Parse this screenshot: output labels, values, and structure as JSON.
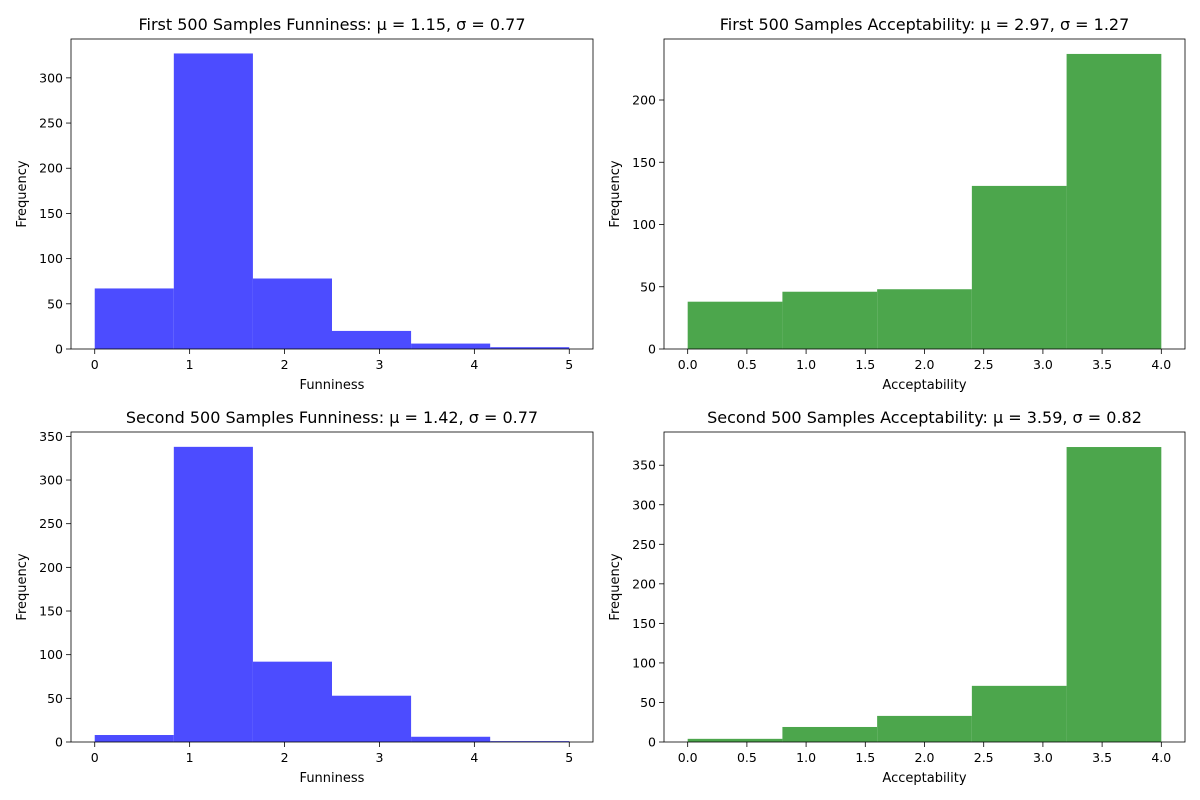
{
  "chart_data": [
    {
      "type": "bar",
      "title": "First 500 Samples Funniness: μ = 1.15, σ = 0.77",
      "xlabel": "Funniness",
      "ylabel": "Frequency",
      "color": "#4c4cff",
      "bin_edges": [
        0,
        0.8333,
        1.6667,
        2.5,
        3.3333,
        4.1667,
        5
      ],
      "values": [
        67,
        327,
        78,
        20,
        6,
        2
      ],
      "xlim": [
        -0.25,
        5.25
      ],
      "ylim": [
        0,
        343
      ],
      "xticks": [
        0,
        1,
        2,
        3,
        4,
        5
      ],
      "xtick_labels": [
        "0",
        "1",
        "2",
        "3",
        "4",
        "5"
      ],
      "yticks": [
        0,
        50,
        100,
        150,
        200,
        250,
        300
      ],
      "ytick_labels": [
        "0",
        "50",
        "100",
        "150",
        "200",
        "250",
        "300"
      ]
    },
    {
      "type": "bar",
      "title": "First 500 Samples Acceptability: μ = 2.97, σ = 1.27",
      "xlabel": "Acceptability",
      "ylabel": "Frequency",
      "color": "#4ca64c",
      "bin_edges": [
        0,
        0.8,
        1.6,
        2.4,
        3.2,
        4.0
      ],
      "values": [
        38,
        46,
        48,
        131,
        237
      ],
      "xlim": [
        -0.2,
        4.2
      ],
      "ylim": [
        0,
        249
      ],
      "xticks": [
        0,
        0.5,
        1,
        1.5,
        2,
        2.5,
        3,
        3.5,
        4
      ],
      "xtick_labels": [
        "0.0",
        "0.5",
        "1.0",
        "1.5",
        "2.0",
        "2.5",
        "3.0",
        "3.5",
        "4.0"
      ],
      "yticks": [
        0,
        50,
        100,
        150,
        200
      ],
      "ytick_labels": [
        "0",
        "50",
        "100",
        "150",
        "200"
      ]
    },
    {
      "type": "bar",
      "title": "Second 500 Samples Funniness: μ = 1.42, σ = 0.77",
      "xlabel": "Funniness",
      "ylabel": "Frequency",
      "color": "#4c4cff",
      "bin_edges": [
        0,
        0.8333,
        1.6667,
        2.5,
        3.3333,
        4.1667,
        5
      ],
      "values": [
        8,
        338,
        92,
        53,
        6,
        1
      ],
      "xlim": [
        -0.25,
        5.25
      ],
      "ylim": [
        0,
        355
      ],
      "xticks": [
        0,
        1,
        2,
        3,
        4,
        5
      ],
      "xtick_labels": [
        "0",
        "1",
        "2",
        "3",
        "4",
        "5"
      ],
      "yticks": [
        0,
        50,
        100,
        150,
        200,
        250,
        300,
        350
      ],
      "ytick_labels": [
        "0",
        "50",
        "100",
        "150",
        "200",
        "250",
        "300",
        "350"
      ]
    },
    {
      "type": "bar",
      "title": "Second 500 Samples Acceptability: μ = 3.59, σ = 0.82",
      "xlabel": "Acceptability",
      "ylabel": "Frequency",
      "color": "#4ca64c",
      "bin_edges": [
        0,
        0.8,
        1.6,
        2.4,
        3.2,
        4.0
      ],
      "values": [
        4,
        19,
        33,
        71,
        373
      ],
      "xlim": [
        -0.2,
        4.2
      ],
      "ylim": [
        0,
        392
      ],
      "xticks": [
        0,
        0.5,
        1,
        1.5,
        2,
        2.5,
        3,
        3.5,
        4
      ],
      "xtick_labels": [
        "0.0",
        "0.5",
        "1.0",
        "1.5",
        "2.0",
        "2.5",
        "3.0",
        "3.5",
        "4.0"
      ],
      "yticks": [
        0,
        50,
        100,
        150,
        200,
        250,
        300,
        350
      ],
      "ytick_labels": [
        "0",
        "50",
        "100",
        "150",
        "200",
        "250",
        "300",
        "350"
      ]
    }
  ]
}
